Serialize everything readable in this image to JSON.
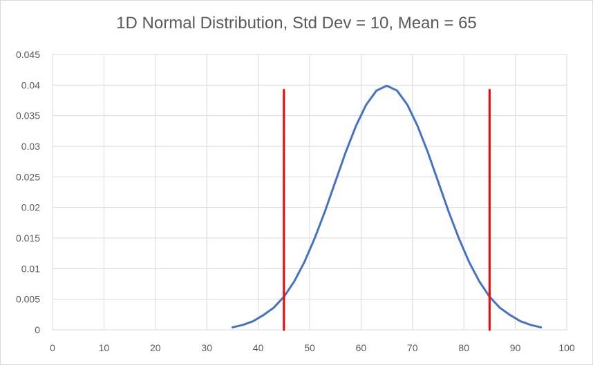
{
  "chart_data": {
    "type": "line",
    "title": "1D Normal Distribution, Std Dev = 10, Mean = 65",
    "xlabel": "",
    "ylabel": "",
    "xlim": [
      0,
      100
    ],
    "ylim": [
      0,
      0.045
    ],
    "x_ticks": [
      "0",
      "10",
      "20",
      "30",
      "40",
      "50",
      "60",
      "70",
      "80",
      "90",
      "100"
    ],
    "y_ticks": [
      "0",
      "0.005",
      "0.01",
      "0.015",
      "0.02",
      "0.025",
      "0.03",
      "0.035",
      "0.04",
      "0.045"
    ],
    "grid": true,
    "series": [
      {
        "color": "#4472c4",
        "x": [
          35,
          37,
          39,
          41,
          43,
          45,
          47,
          49,
          51,
          53,
          55,
          57,
          59,
          61,
          63,
          65,
          67,
          69,
          71,
          73,
          75,
          77,
          79,
          81,
          83,
          85,
          87,
          89,
          91,
          93,
          95
        ],
        "y": [
          0.0004,
          0.0008,
          0.0014,
          0.0024,
          0.0036,
          0.0054,
          0.0079,
          0.0111,
          0.015,
          0.0194,
          0.0242,
          0.029,
          0.0333,
          0.0368,
          0.0391,
          0.0399,
          0.0391,
          0.0368,
          0.0333,
          0.029,
          0.0242,
          0.0194,
          0.015,
          0.0111,
          0.0079,
          0.0054,
          0.0036,
          0.0024,
          0.0014,
          0.0008,
          0.0004
        ]
      },
      {
        "color": "#ff0000",
        "x": [
          45,
          45
        ],
        "y": [
          0,
          0.0392
        ]
      },
      {
        "color": "#ff0000",
        "x": [
          85,
          85
        ],
        "y": [
          0,
          0.0392
        ]
      }
    ]
  }
}
